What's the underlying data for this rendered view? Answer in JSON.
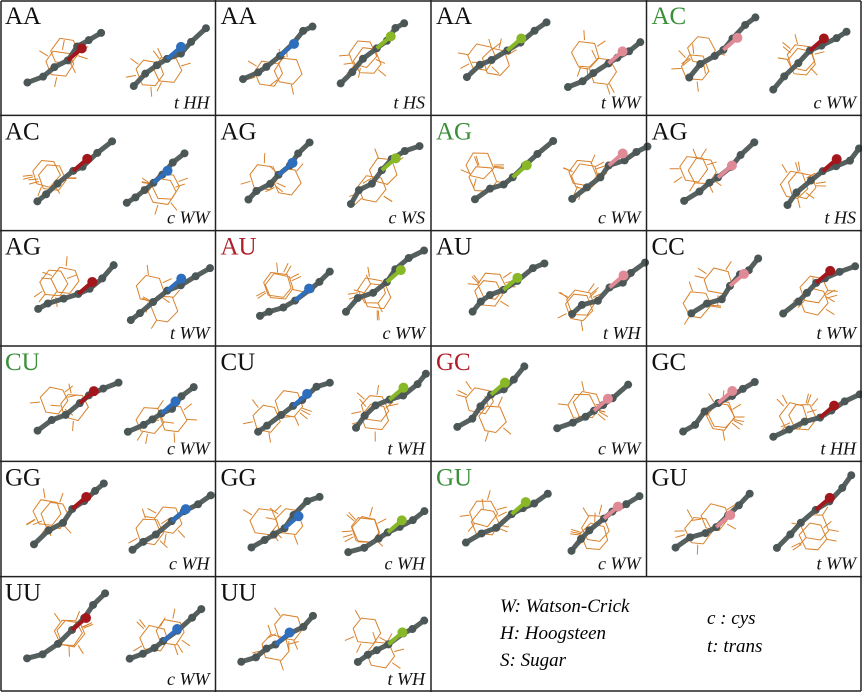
{
  "cells": [
    {
      "pair": "AA",
      "color": "#111111",
      "geometry": "t HH"
    },
    {
      "pair": "AA",
      "color": "#111111",
      "geometry": "t HS"
    },
    {
      "pair": "AA",
      "color": "#111111",
      "geometry": "t WW"
    },
    {
      "pair": "AC",
      "color": "#3a8f3a",
      "geometry": "c WW"
    },
    {
      "pair": "AC",
      "color": "#111111",
      "geometry": "c WW"
    },
    {
      "pair": "AG",
      "color": "#111111",
      "geometry": "c WS"
    },
    {
      "pair": "AG",
      "color": "#3a8f3a",
      "geometry": "c WW"
    },
    {
      "pair": "AG",
      "color": "#111111",
      "geometry": "t HS"
    },
    {
      "pair": "AG",
      "color": "#111111",
      "geometry": "t WW"
    },
    {
      "pair": "AU",
      "color": "#b0202a",
      "geometry": "c WW"
    },
    {
      "pair": "AU",
      "color": "#111111",
      "geometry": "t WH"
    },
    {
      "pair": "CC",
      "color": "#111111",
      "geometry": "t WW"
    },
    {
      "pair": "CU",
      "color": "#3a8f3a",
      "geometry": "c WW"
    },
    {
      "pair": "CU",
      "color": "#111111",
      "geometry": "t WH"
    },
    {
      "pair": "GC",
      "color": "#b0202a",
      "geometry": "c WW"
    },
    {
      "pair": "GC",
      "color": "#111111",
      "geometry": "t HH"
    },
    {
      "pair": "GG",
      "color": "#111111",
      "geometry": "c WH"
    },
    {
      "pair": "GG",
      "color": "#111111",
      "geometry": "c WH"
    },
    {
      "pair": "GU",
      "color": "#3a8f3a",
      "geometry": "c WW"
    },
    {
      "pair": "GU",
      "color": "#111111",
      "geometry": "t WW"
    },
    {
      "pair": "UU",
      "color": "#111111",
      "geometry": "c WW"
    },
    {
      "pair": "UU",
      "color": "#111111",
      "geometry": "t WH"
    }
  ],
  "legend": {
    "edges": [
      "W: Watson-Crick",
      "H: Hoogsteen",
      "S: Sugar"
    ],
    "orientation": [
      "c : cys",
      "t: trans"
    ]
  }
}
